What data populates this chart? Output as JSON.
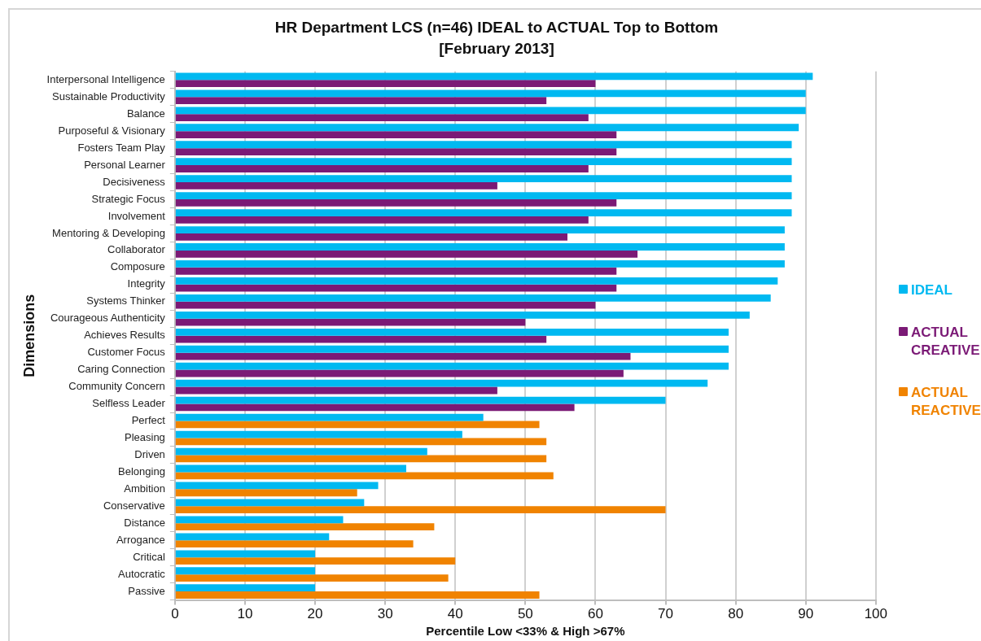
{
  "chart_data": {
    "type": "bar",
    "orientation": "horizontal",
    "title": "HR Department LCS (n=46) IDEAL to ACTUAL Top to Bottom",
    "subtitle": "[February 2013]",
    "xlabel": "Percentile Low <33% & High >67%",
    "ylabel": "Dimensions",
    "categories": [
      "Interpersonal Intelligence",
      "Sustainable Productivity",
      "Balance",
      "Purposeful & Visionary",
      "Fosters Team Play",
      "Personal Learner",
      "Decisiveness",
      "Strategic Focus",
      "Involvement",
      "Mentoring & Developing",
      "Collaborator",
      "Composure",
      "Integrity",
      "Systems Thinker",
      "Courageous Authenticity",
      "Achieves Results",
      "Customer Focus",
      "Caring Connection",
      "Community Concern",
      "Selfless Leader",
      "Perfect",
      "Pleasing",
      "Driven",
      "Belonging",
      "Ambition",
      "Conservative",
      "Distance",
      "Arrogance",
      "Critical",
      "Autocratic",
      "Passive"
    ],
    "series": [
      {
        "name": "IDEAL",
        "color": "#00b9f1",
        "values": [
          91,
          90,
          90,
          89,
          88,
          88,
          88,
          88,
          88,
          87,
          87,
          87,
          86,
          85,
          82,
          79,
          79,
          79,
          76,
          70,
          44,
          41,
          36,
          33,
          29,
          27,
          24,
          22,
          20,
          20,
          20
        ]
      },
      {
        "name": "ACTUAL CREATIVE",
        "color": "#7b1a76",
        "values": [
          60,
          53,
          59,
          63,
          63,
          59,
          46,
          63,
          59,
          56,
          66,
          63,
          63,
          60,
          50,
          53,
          65,
          64,
          46,
          57,
          null,
          null,
          null,
          null,
          null,
          null,
          null,
          null,
          null,
          null,
          null
        ]
      },
      {
        "name": "ACTUAL REACTIVE",
        "color": "#f08300",
        "values": [
          null,
          null,
          null,
          null,
          null,
          null,
          null,
          null,
          null,
          null,
          null,
          null,
          null,
          null,
          null,
          null,
          null,
          null,
          null,
          null,
          52,
          53,
          53,
          54,
          26,
          70,
          37,
          34,
          40,
          39,
          52
        ]
      }
    ],
    "xlim": [
      0,
      100
    ],
    "xticks": [
      0,
      10,
      20,
      30,
      40,
      50,
      60,
      70,
      80,
      90,
      100
    ],
    "grid": "x",
    "legend": "right"
  }
}
